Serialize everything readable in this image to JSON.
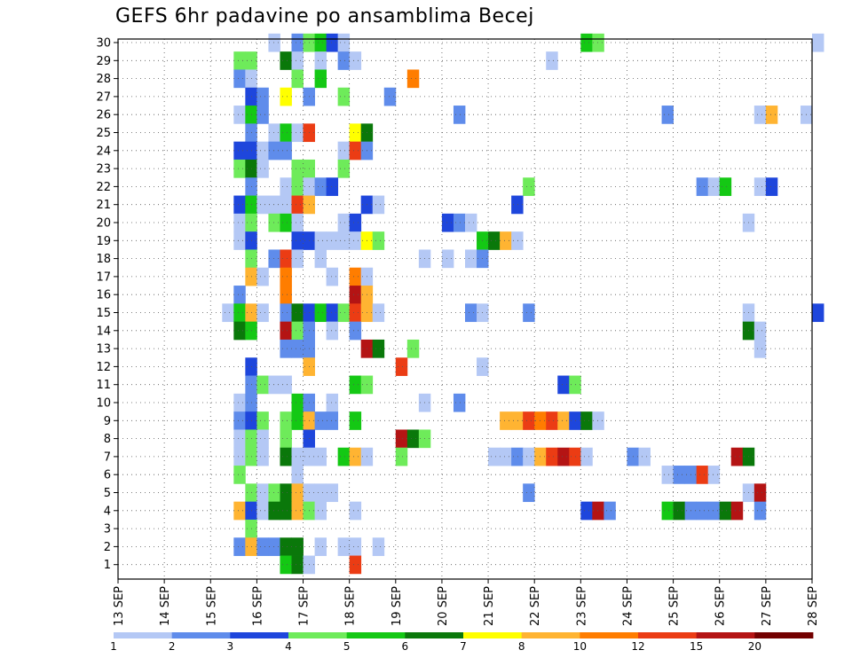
{
  "chart_data": {
    "type": "heatmap",
    "title": "GEFS 6hr padavine po ansamblima Becej",
    "xlabel": "",
    "ylabel": "",
    "y_members": [
      1,
      30
    ],
    "y_ticks": [
      "1",
      "2",
      "3",
      "4",
      "5",
      "6",
      "7",
      "8",
      "9",
      "10",
      "11",
      "12",
      "13",
      "14",
      "15",
      "16",
      "17",
      "18",
      "19",
      "20",
      "21",
      "22",
      "23",
      "24",
      "25",
      "26",
      "27",
      "28",
      "29",
      "30"
    ],
    "x_ticks": [
      "13 SEP",
      "14 SEP",
      "15 SEP",
      "16 SEP",
      "17 SEP",
      "18 SEP",
      "19 SEP",
      "20 SEP",
      "21 SEP",
      "22 SEP",
      "23 SEP",
      "24 SEP",
      "25 SEP",
      "26 SEP",
      "27 SEP",
      "28 SEP"
    ],
    "x_range_days": [
      0,
      15
    ],
    "step_hours": 6,
    "grid": true,
    "legend": {
      "placement": "bottom",
      "labels": [
        "1",
        "2",
        "3",
        "4",
        "5",
        "6",
        "7",
        "8",
        "10",
        "12",
        "15",
        "20"
      ],
      "bins": [
        {
          "min": 1,
          "max": 2,
          "color": "#b4c8f5"
        },
        {
          "min": 2,
          "max": 3,
          "color": "#5f8ceb"
        },
        {
          "min": 3,
          "max": 4,
          "color": "#1e46dc"
        },
        {
          "min": 4,
          "max": 5,
          "color": "#6eeb5a"
        },
        {
          "min": 5,
          "max": 6,
          "color": "#14c814"
        },
        {
          "min": 6,
          "max": 7,
          "color": "#0a780a"
        },
        {
          "min": 7,
          "max": 8,
          "color": "#ffff00"
        },
        {
          "min": 8,
          "max": 10,
          "color": "#ffb432"
        },
        {
          "min": 10,
          "max": 12,
          "color": "#ff7d00"
        },
        {
          "min": 12,
          "max": 15,
          "color": "#eb3c14"
        },
        {
          "min": 15,
          "max": 20,
          "color": "#b41414"
        },
        {
          "min": 20,
          "max": 30,
          "color": "#730000"
        }
      ]
    },
    "cells": [
      [
        30,
        13,
        1
      ],
      [
        30,
        15,
        2
      ],
      [
        30,
        16,
        4
      ],
      [
        30,
        17,
        5
      ],
      [
        30,
        18,
        3
      ],
      [
        30,
        19,
        1
      ],
      [
        30,
        40,
        5
      ],
      [
        30,
        41,
        4
      ],
      [
        30,
        60,
        1
      ],
      [
        29,
        10,
        4
      ],
      [
        29,
        11,
        4
      ],
      [
        29,
        14,
        6
      ],
      [
        29,
        15,
        1
      ],
      [
        29,
        17,
        1
      ],
      [
        29,
        19,
        2
      ],
      [
        29,
        20,
        1
      ],
      [
        29,
        37,
        1
      ],
      [
        28,
        10,
        2
      ],
      [
        28,
        11,
        1
      ],
      [
        28,
        15,
        4
      ],
      [
        28,
        17,
        5
      ],
      [
        28,
        25,
        10
      ],
      [
        27,
        11,
        3
      ],
      [
        27,
        12,
        2
      ],
      [
        27,
        14,
        7
      ],
      [
        27,
        16,
        2
      ],
      [
        27,
        19,
        4
      ],
      [
        27,
        23,
        2
      ],
      [
        26,
        10,
        1
      ],
      [
        26,
        11,
        5
      ],
      [
        26,
        12,
        2
      ],
      [
        26,
        29,
        2
      ],
      [
        26,
        47,
        2
      ],
      [
        26,
        55,
        1
      ],
      [
        26,
        56,
        9
      ],
      [
        26,
        59,
        1
      ],
      [
        25,
        11,
        2
      ],
      [
        25,
        13,
        1
      ],
      [
        25,
        14,
        5
      ],
      [
        25,
        15,
        1
      ],
      [
        25,
        16,
        12
      ],
      [
        25,
        20,
        7
      ],
      [
        25,
        21,
        6
      ],
      [
        24,
        10,
        3
      ],
      [
        24,
        11,
        3
      ],
      [
        24,
        12,
        1
      ],
      [
        24,
        13,
        2
      ],
      [
        24,
        14,
        2
      ],
      [
        24,
        19,
        1
      ],
      [
        24,
        20,
        13
      ],
      [
        24,
        21,
        2
      ],
      [
        23,
        10,
        4
      ],
      [
        23,
        11,
        6
      ],
      [
        23,
        12,
        1
      ],
      [
        23,
        15,
        4
      ],
      [
        23,
        16,
        4
      ],
      [
        23,
        19,
        4
      ],
      [
        22,
        11,
        2
      ],
      [
        22,
        14,
        1
      ],
      [
        22,
        15,
        4
      ],
      [
        22,
        16,
        1
      ],
      [
        22,
        17,
        2
      ],
      [
        22,
        18,
        3
      ],
      [
        22,
        35,
        4
      ],
      [
        22,
        50,
        2
      ],
      [
        22,
        51,
        1
      ],
      [
        22,
        52,
        5
      ],
      [
        22,
        55,
        1
      ],
      [
        22,
        56,
        3
      ],
      [
        21,
        10,
        3
      ],
      [
        21,
        11,
        5
      ],
      [
        21,
        12,
        1
      ],
      [
        21,
        13,
        1
      ],
      [
        21,
        14,
        1
      ],
      [
        21,
        15,
        12
      ],
      [
        21,
        16,
        9
      ],
      [
        21,
        21,
        3
      ],
      [
        21,
        22,
        1
      ],
      [
        21,
        34,
        3
      ],
      [
        20,
        10,
        1
      ],
      [
        20,
        11,
        4
      ],
      [
        20,
        13,
        4
      ],
      [
        20,
        14,
        5
      ],
      [
        20,
        15,
        1
      ],
      [
        20,
        19,
        1
      ],
      [
        20,
        20,
        3
      ],
      [
        20,
        28,
        3
      ],
      [
        20,
        29,
        2
      ],
      [
        20,
        30,
        1
      ],
      [
        20,
        54,
        1
      ],
      [
        19,
        10,
        1
      ],
      [
        19,
        11,
        3
      ],
      [
        19,
        15,
        3
      ],
      [
        19,
        16,
        3
      ],
      [
        19,
        17,
        1
      ],
      [
        19,
        18,
        1
      ],
      [
        19,
        19,
        1
      ],
      [
        19,
        20,
        1
      ],
      [
        19,
        21,
        7
      ],
      [
        19,
        22,
        4
      ],
      [
        19,
        31,
        5
      ],
      [
        19,
        32,
        6
      ],
      [
        19,
        33,
        9
      ],
      [
        19,
        34,
        1
      ],
      [
        18,
        11,
        4
      ],
      [
        18,
        13,
        2
      ],
      [
        18,
        14,
        13
      ],
      [
        18,
        15,
        1
      ],
      [
        18,
        17,
        1
      ],
      [
        18,
        26,
        1
      ],
      [
        18,
        28,
        1
      ],
      [
        18,
        30,
        1
      ],
      [
        18,
        31,
        2
      ],
      [
        17,
        11,
        9
      ],
      [
        17,
        12,
        1
      ],
      [
        17,
        14,
        10
      ],
      [
        17,
        18,
        1
      ],
      [
        17,
        20,
        10
      ],
      [
        17,
        21,
        1
      ],
      [
        16,
        10,
        2
      ],
      [
        16,
        14,
        10
      ],
      [
        16,
        20,
        15
      ],
      [
        16,
        21,
        9
      ],
      [
        15,
        9,
        1
      ],
      [
        15,
        10,
        5
      ],
      [
        15,
        11,
        9
      ],
      [
        15,
        12,
        1
      ],
      [
        15,
        14,
        2
      ],
      [
        15,
        15,
        6
      ],
      [
        15,
        16,
        3
      ],
      [
        15,
        17,
        5
      ],
      [
        15,
        18,
        3
      ],
      [
        15,
        19,
        4
      ],
      [
        15,
        20,
        13
      ],
      [
        15,
        21,
        9
      ],
      [
        15,
        22,
        1
      ],
      [
        15,
        30,
        2
      ],
      [
        15,
        31,
        1
      ],
      [
        15,
        35,
        2
      ],
      [
        15,
        54,
        1
      ],
      [
        15,
        60,
        3
      ],
      [
        14,
        10,
        6
      ],
      [
        14,
        11,
        5
      ],
      [
        14,
        14,
        15
      ],
      [
        14,
        15,
        4
      ],
      [
        14,
        16,
        2
      ],
      [
        14,
        18,
        1
      ],
      [
        14,
        20,
        2
      ],
      [
        14,
        54,
        6
      ],
      [
        14,
        55,
        1
      ],
      [
        13,
        14,
        2
      ],
      [
        13,
        15,
        2
      ],
      [
        13,
        16,
        2
      ],
      [
        13,
        21,
        15
      ],
      [
        13,
        22,
        6
      ],
      [
        13,
        25,
        4
      ],
      [
        13,
        55,
        1
      ],
      [
        12,
        11,
        3
      ],
      [
        12,
        16,
        9
      ],
      [
        12,
        24,
        12
      ],
      [
        12,
        31,
        1
      ],
      [
        11,
        11,
        2
      ],
      [
        11,
        12,
        4
      ],
      [
        11,
        13,
        1
      ],
      [
        11,
        14,
        1
      ],
      [
        11,
        20,
        5
      ],
      [
        11,
        21,
        4
      ],
      [
        11,
        38,
        3
      ],
      [
        11,
        39,
        4
      ],
      [
        10,
        10,
        1
      ],
      [
        10,
        11,
        2
      ],
      [
        10,
        15,
        5
      ],
      [
        10,
        16,
        2
      ],
      [
        10,
        18,
        1
      ],
      [
        10,
        26,
        1
      ],
      [
        10,
        29,
        2
      ],
      [
        9,
        10,
        2
      ],
      [
        9,
        11,
        3
      ],
      [
        9,
        12,
        4
      ],
      [
        9,
        14,
        4
      ],
      [
        9,
        15,
        5
      ],
      [
        9,
        16,
        8
      ],
      [
        9,
        17,
        2
      ],
      [
        9,
        18,
        2
      ],
      [
        9,
        20,
        5
      ],
      [
        9,
        33,
        9
      ],
      [
        9,
        34,
        9
      ],
      [
        9,
        35,
        12
      ],
      [
        9,
        36,
        10
      ],
      [
        9,
        37,
        12
      ],
      [
        9,
        38,
        8
      ],
      [
        9,
        39,
        3
      ],
      [
        9,
        40,
        6
      ],
      [
        9,
        41,
        1
      ],
      [
        8,
        10,
        1
      ],
      [
        8,
        11,
        4
      ],
      [
        8,
        12,
        1
      ],
      [
        8,
        14,
        4
      ],
      [
        8,
        16,
        3
      ],
      [
        8,
        24,
        15
      ],
      [
        8,
        25,
        6
      ],
      [
        8,
        26,
        4
      ],
      [
        7,
        10,
        1
      ],
      [
        7,
        11,
        4
      ],
      [
        7,
        12,
        1
      ],
      [
        7,
        14,
        6
      ],
      [
        7,
        15,
        1
      ],
      [
        7,
        16,
        1
      ],
      [
        7,
        17,
        1
      ],
      [
        7,
        19,
        5
      ],
      [
        7,
        20,
        8
      ],
      [
        7,
        21,
        1
      ],
      [
        7,
        24,
        4
      ],
      [
        7,
        32,
        1
      ],
      [
        7,
        33,
        1
      ],
      [
        7,
        34,
        2
      ],
      [
        7,
        35,
        1
      ],
      [
        7,
        36,
        8
      ],
      [
        7,
        37,
        13
      ],
      [
        7,
        38,
        15
      ],
      [
        7,
        39,
        12
      ],
      [
        7,
        40,
        1
      ],
      [
        7,
        44,
        2
      ],
      [
        7,
        45,
        1
      ],
      [
        7,
        53,
        15
      ],
      [
        7,
        54,
        6
      ],
      [
        6,
        10,
        4
      ],
      [
        6,
        15,
        1
      ],
      [
        6,
        47,
        1
      ],
      [
        6,
        48,
        2
      ],
      [
        6,
        49,
        2
      ],
      [
        6,
        50,
        12
      ],
      [
        6,
        51,
        1
      ],
      [
        5,
        11,
        4
      ],
      [
        5,
        12,
        1
      ],
      [
        5,
        13,
        4
      ],
      [
        5,
        14,
        6
      ],
      [
        5,
        15,
        8
      ],
      [
        5,
        16,
        1
      ],
      [
        5,
        17,
        1
      ],
      [
        5,
        18,
        1
      ],
      [
        5,
        35,
        2
      ],
      [
        5,
        54,
        1
      ],
      [
        5,
        55,
        15
      ],
      [
        4,
        10,
        8
      ],
      [
        4,
        11,
        3
      ],
      [
        4,
        12,
        1
      ],
      [
        4,
        13,
        6
      ],
      [
        4,
        14,
        6
      ],
      [
        4,
        15,
        8
      ],
      [
        4,
        16,
        4
      ],
      [
        4,
        17,
        1
      ],
      [
        4,
        20,
        1
      ],
      [
        4,
        40,
        3
      ],
      [
        4,
        41,
        15
      ],
      [
        4,
        42,
        2
      ],
      [
        4,
        47,
        5
      ],
      [
        4,
        48,
        6
      ],
      [
        4,
        49,
        2
      ],
      [
        4,
        50,
        2
      ],
      [
        4,
        51,
        2
      ],
      [
        4,
        52,
        6
      ],
      [
        4,
        53,
        15
      ],
      [
        4,
        55,
        2
      ],
      [
        3,
        11,
        4
      ],
      [
        2,
        10,
        2
      ],
      [
        2,
        11,
        9
      ],
      [
        2,
        12,
        2
      ],
      [
        2,
        13,
        2
      ],
      [
        2,
        14,
        6
      ],
      [
        2,
        15,
        6
      ],
      [
        2,
        17,
        1
      ],
      [
        2,
        19,
        1
      ],
      [
        2,
        20,
        1
      ],
      [
        2,
        22,
        1
      ],
      [
        1,
        14,
        5
      ],
      [
        1,
        15,
        6
      ],
      [
        1,
        16,
        1
      ],
      [
        1,
        20,
        12
      ]
    ]
  }
}
